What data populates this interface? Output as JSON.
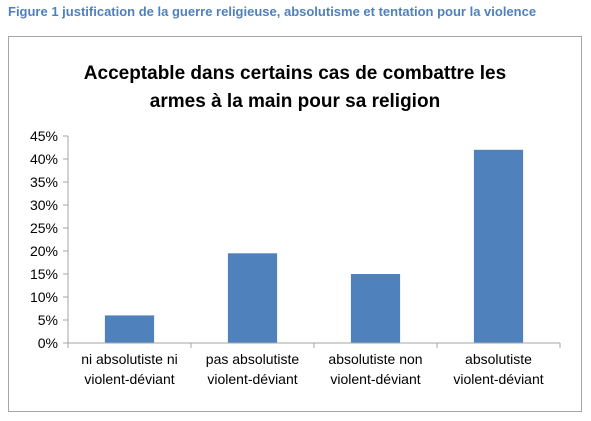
{
  "caption": "Figure 1 justification de la guerre religieuse, absolutisme et tentation pour la violence",
  "chart_data": {
    "type": "bar",
    "title_lines": [
      "Acceptable dans certains cas de combattre les",
      "armes à la main pour sa religion"
    ],
    "categories": [
      [
        "ni absolutiste ni",
        "violent-déviant"
      ],
      [
        "pas absolutiste",
        "violent-déviant"
      ],
      [
        "absolutiste non",
        "violent-déviant"
      ],
      [
        "absolutiste",
        "violent-déviant"
      ]
    ],
    "values": [
      6,
      19.5,
      15,
      42
    ],
    "ylim": [
      0,
      45
    ],
    "yticks": [
      "0%",
      "5%",
      "10%",
      "15%",
      "20%",
      "25%",
      "30%",
      "35%",
      "40%",
      "45%"
    ],
    "bar_color": "#4f81bd",
    "axis_color": "#a6a6a6",
    "grid": false,
    "legend": "none"
  }
}
